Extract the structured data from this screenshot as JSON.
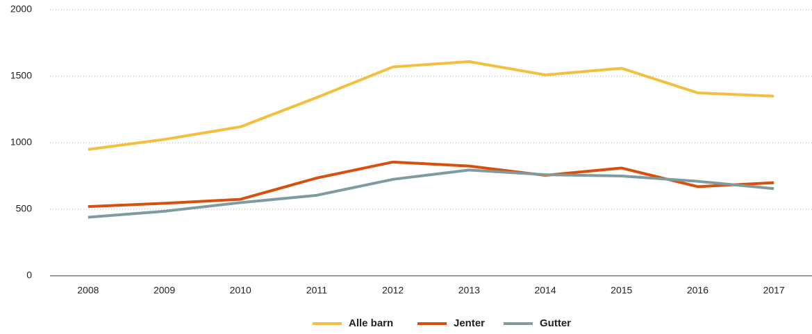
{
  "chart_data": {
    "type": "line",
    "categories": [
      "2008",
      "2009",
      "2010",
      "2011",
      "2012",
      "2013",
      "2014",
      "2015",
      "2016",
      "2017"
    ],
    "series": [
      {
        "name": "Alle barn",
        "color": "#f3bf3c",
        "values": [
          950,
          1025,
          1120,
          1340,
          1570,
          1610,
          1510,
          1560,
          1375,
          1350
        ]
      },
      {
        "name": "Jenter",
        "color": "#d9500c",
        "values": [
          520,
          545,
          575,
          735,
          855,
          825,
          755,
          810,
          670,
          700
        ]
      },
      {
        "name": "Gutter",
        "color": "#7f9ba0",
        "values": [
          440,
          485,
          550,
          605,
          725,
          795,
          760,
          750,
          710,
          655
        ]
      }
    ],
    "ylim": [
      0,
      2000
    ],
    "yticks": [
      0,
      500,
      1000,
      1500,
      2000
    ],
    "grid": true,
    "legend": "bottom"
  }
}
